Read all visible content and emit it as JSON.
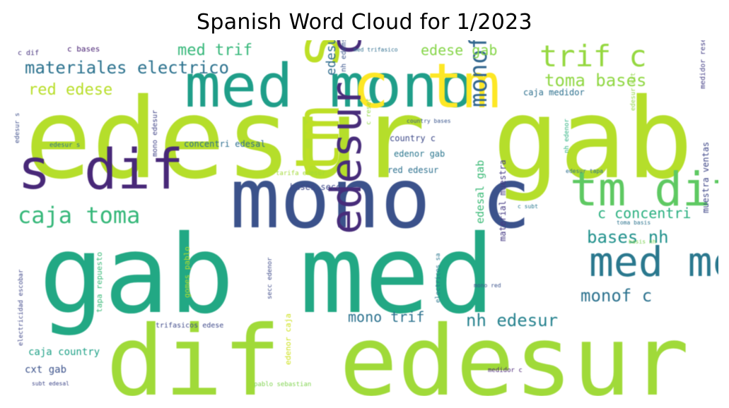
{
  "title": "Spanish Word Cloud for 1/2023",
  "words": [
    {
      "text": "edesur gab",
      "color": "#b5de2b"
    },
    {
      "text": "gab med",
      "color": "#22a884"
    },
    {
      "text": "dif edesur",
      "color": "#a0da39"
    },
    {
      "text": "med mono",
      "color": "#1f9e89"
    },
    {
      "text": "c tm",
      "color": "#fde725"
    },
    {
      "text": "mono c",
      "color": "#3b528b"
    },
    {
      "text": "s dif",
      "color": "#482878"
    },
    {
      "text": "tm dif",
      "color": "#5ec962"
    },
    {
      "text": "tm s",
      "color": "#bddf26"
    },
    {
      "text": "med monof",
      "color": "#2a788e"
    },
    {
      "text": "trif c",
      "color": "#95d840"
    },
    {
      "text": "edesur caja",
      "color": "#472c7a"
    },
    {
      "text": "caja toma",
      "color": "#35b779"
    },
    {
      "text": "monof red",
      "color": "#31668e"
    },
    {
      "text": "materiales electrico",
      "color": "#2c728e"
    },
    {
      "text": "nh edesur",
      "color": "#26828e"
    },
    {
      "text": "med trif",
      "color": "#35b779"
    },
    {
      "text": "red edese",
      "color": "#b8de29"
    },
    {
      "text": "toma bases",
      "color": "#90d743"
    },
    {
      "text": "edese gab",
      "color": "#86d549"
    },
    {
      "text": "bases nh",
      "color": "#21918c"
    },
    {
      "text": "monof c",
      "color": "#2c728e"
    },
    {
      "text": "mono trif",
      "color": "#2c728e"
    },
    {
      "text": "c concentri",
      "color": "#29af7f"
    },
    {
      "text": "edesal gab",
      "color": "#3aba76"
    },
    {
      "text": "edesur cxt",
      "color": "#2f6c8e"
    },
    {
      "text": "caja country",
      "color": "#1fa187"
    },
    {
      "text": "cxt gab",
      "color": "#3b528b"
    },
    {
      "text": "bases secc",
      "color": "#3e4989"
    },
    {
      "text": "red edesur",
      "color": "#2d708e"
    },
    {
      "text": "country c",
      "color": "#3e4a89"
    },
    {
      "text": "edenor gab",
      "color": "#2a768e"
    },
    {
      "text": "concentri edesal",
      "color": "#2e6e8e"
    },
    {
      "text": "material muestra",
      "color": "#443983"
    },
    {
      "text": "caja medidor",
      "color": "#2d708e"
    },
    {
      "text": "muestra ventas",
      "color": "#3f4788"
    },
    {
      "text": "c bases",
      "color": "#482173"
    },
    {
      "text": "c dif",
      "color": "#46327e"
    },
    {
      "text": "c reset",
      "color": "#8fd744"
    },
    {
      "text": "nh edemsa",
      "color": "#3a548c"
    },
    {
      "text": "med trifasico",
      "color": "#2e6d8e"
    },
    {
      "text": "mono edesur",
      "color": "#414487"
    },
    {
      "text": "country bases",
      "color": "#39558c"
    },
    {
      "text": "medidor reset",
      "color": "#433e85"
    },
    {
      "text": "edesur kit",
      "color": "#90d743"
    },
    {
      "text": "nh edenor",
      "color": "#2ab07f"
    },
    {
      "text": "edesur tapa",
      "color": "#2e6f8e"
    },
    {
      "text": "edesur s",
      "color": "#3d4e8a"
    },
    {
      "text": "c subt",
      "color": "#2a788e"
    },
    {
      "text": "edesur s",
      "color": "#2d708e"
    },
    {
      "text": "tarifa edesur",
      "color": "#a2da37"
    },
    {
      "text": "toma basis",
      "color": "#2c738e"
    },
    {
      "text": "basis nh",
      "color": "#7ad151"
    },
    {
      "text": "electricidad escobar",
      "color": "#3f4788"
    },
    {
      "text": "tapa repuesto",
      "color": "#38b977"
    },
    {
      "text": "gomes pablo",
      "color": "#b5de2b"
    },
    {
      "text": "secc edenor",
      "color": "#3e4a89"
    },
    {
      "text": "edenor caja",
      "color": "#cde11d"
    },
    {
      "text": "electricos sa",
      "color": "#2a768e"
    },
    {
      "text": "mono red",
      "color": "#3b528b"
    },
    {
      "text": "trifasicos edese",
      "color": "#3e4989"
    },
    {
      "text": "medidor c",
      "color": "#482475"
    },
    {
      "text": "subt edesal",
      "color": "#3f4889"
    },
    {
      "text": "pablo sebastian",
      "color": "#7fd34e"
    }
  ]
}
